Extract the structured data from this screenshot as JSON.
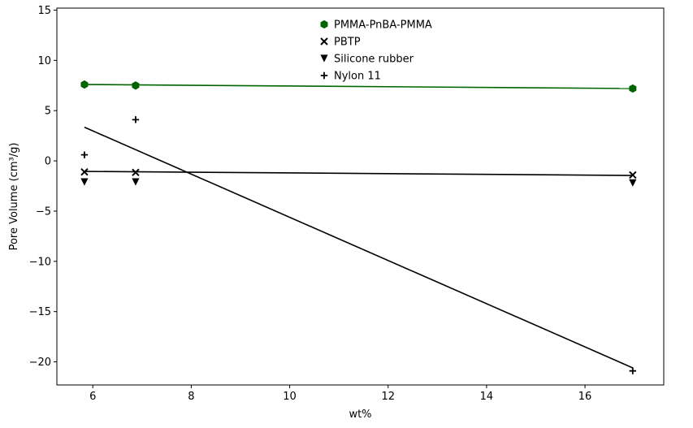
{
  "chart_data": {
    "type": "scatter",
    "xlabel": "wt%",
    "ylabel": "Pore Volume (cm³/g)",
    "xlim": [
      5.27,
      17.6
    ],
    "ylim": [
      -22.3,
      15.2
    ],
    "xticks": [
      6,
      8,
      10,
      12,
      14,
      16
    ],
    "yticks": [
      -20,
      -15,
      -10,
      -5,
      0,
      5,
      10,
      15
    ],
    "grid": false,
    "legend_position": "top-center",
    "series": [
      {
        "name": "PMMA-PnBA-PMMA",
        "marker": "hexagon",
        "color": "#006400",
        "x": [
          5.83,
          6.87,
          16.97
        ],
        "y": [
          7.6,
          7.5,
          7.2
        ],
        "fit": {
          "x": [
            5.83,
            16.97
          ],
          "y": [
            7.6,
            7.2
          ],
          "color": "#006400"
        }
      },
      {
        "name": "PBTP",
        "marker": "x",
        "color": "#000000",
        "x": [
          5.83,
          6.87,
          16.97
        ],
        "y": [
          -1.1,
          -1.15,
          -1.4
        ],
        "fit": {
          "x": [
            5.83,
            16.97
          ],
          "y": [
            -1.05,
            -1.45
          ],
          "color": "#000000"
        }
      },
      {
        "name": "Silicone rubber",
        "marker": "triangle-down",
        "color": "#000000",
        "x": [
          5.83,
          6.87,
          16.97
        ],
        "y": [
          -2.1,
          -2.1,
          -2.2
        ]
      },
      {
        "name": "Nylon 11",
        "marker": "plus",
        "color": "#000000",
        "x": [
          5.83,
          6.87,
          16.97
        ],
        "y": [
          0.6,
          4.1,
          -20.9
        ],
        "fit": {
          "x": [
            5.83,
            16.97
          ],
          "y": [
            3.35,
            -20.6
          ],
          "color": "#000000"
        }
      }
    ]
  }
}
